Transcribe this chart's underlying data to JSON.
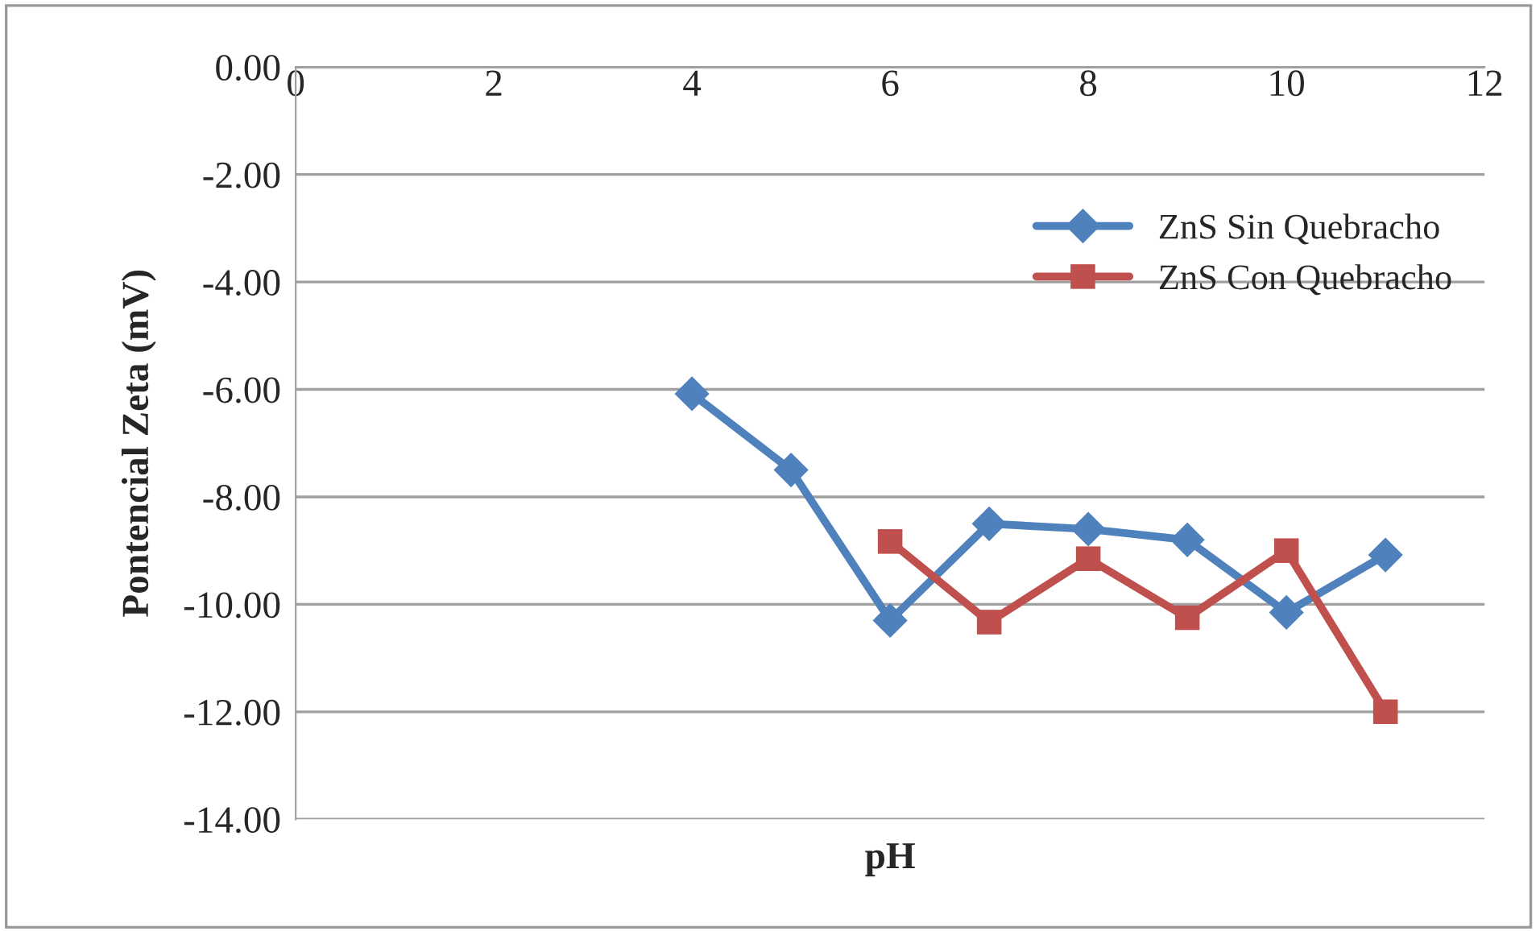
{
  "chart_data": {
    "type": "line",
    "xlabel": "pH",
    "ylabel": "Pontencial Zeta (mV)",
    "series": [
      {
        "name": "ZnS Sin Quebracho",
        "color": "#4f81bd",
        "marker": "diamond",
        "x": [
          4,
          5,
          6,
          7,
          8,
          9,
          10,
          11
        ],
        "values": [
          -6.08,
          -7.5,
          -10.3,
          -8.5,
          -8.6,
          -8.8,
          -10.15,
          -9.08
        ]
      },
      {
        "name": "ZnS Con Quebracho",
        "color": "#c0504d",
        "marker": "square",
        "x": [
          6,
          7,
          8,
          9,
          10,
          11
        ],
        "values": [
          -8.83,
          -10.33,
          -9.15,
          -10.25,
          -9.0,
          -12.0
        ]
      }
    ],
    "xlim": [
      0,
      12
    ],
    "xticks": [
      0,
      2,
      4,
      6,
      8,
      10,
      12
    ],
    "ylim": [
      -14,
      0
    ],
    "yticks": [
      {
        "value": 0,
        "label": "0.00"
      },
      {
        "value": -2,
        "label": "-2.00"
      },
      {
        "value": -4,
        "label": "-4.00"
      },
      {
        "value": -6,
        "label": "-6.00"
      },
      {
        "value": -8,
        "label": "-8.00"
      },
      {
        "value": -10,
        "label": "-10.00"
      },
      {
        "value": -12,
        "label": "-12.00"
      },
      {
        "value": -14,
        "label": "-14.00"
      }
    ],
    "grid": "y",
    "legend": "right",
    "line_style": "solid"
  }
}
